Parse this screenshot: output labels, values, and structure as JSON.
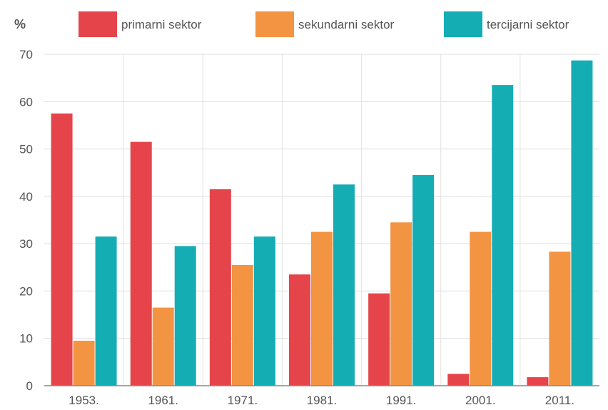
{
  "chart_data": {
    "type": "bar",
    "unit_label": "%",
    "categories": [
      "1953.",
      "1961.",
      "1971.",
      "1981.",
      "1991.",
      "2001.",
      "2011."
    ],
    "series": [
      {
        "name": "primarni sektor",
        "color": "#e5454a",
        "values": [
          57.5,
          51.5,
          41.5,
          23.5,
          19.5,
          2.5,
          1.8
        ]
      },
      {
        "name": "sekundarni sektor",
        "color": "#f39443",
        "values": [
          9.5,
          16.5,
          25.5,
          32.5,
          34.5,
          32.5,
          28.3
        ]
      },
      {
        "name": "tercijarni sektor",
        "color": "#14adb4",
        "values": [
          31.5,
          29.5,
          31.5,
          42.5,
          44.5,
          63.5,
          68.7
        ]
      }
    ],
    "ylim": [
      0,
      70
    ],
    "yticks": [
      0,
      10,
      20,
      30,
      40,
      50,
      60,
      70
    ],
    "grid": true,
    "legend_position": "top"
  }
}
